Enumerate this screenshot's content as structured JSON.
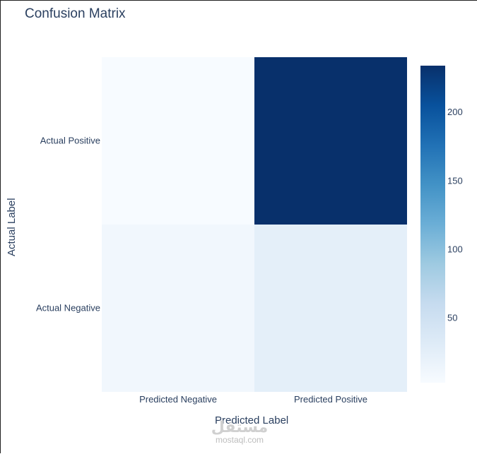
{
  "chart_data": {
    "type": "heatmap",
    "title": "Confusion Matrix",
    "xlabel": "Predicted Label",
    "ylabel": "Actual Label",
    "x_categories": [
      "Predicted Negative",
      "Predicted Positive"
    ],
    "y_categories": [
      "Actual Negative",
      "Actual Positive"
    ],
    "z": [
      [
        10,
        25
      ],
      [
        3,
        234
      ]
    ],
    "colorscale": "Blues",
    "zmin": 3,
    "zmax": 234,
    "colorbar_ticks": [
      50,
      100,
      150,
      200
    ]
  },
  "colors": {
    "scale": [
      "#f7fbff",
      "#deebf7",
      "#c6dbef",
      "#9ecae1",
      "#6baed6",
      "#4292c6",
      "#2171b5",
      "#08519c",
      "#08306b"
    ],
    "text": "#2a3f5f"
  },
  "watermark": {
    "text": "مستقل",
    "site": "mostaql.com"
  }
}
